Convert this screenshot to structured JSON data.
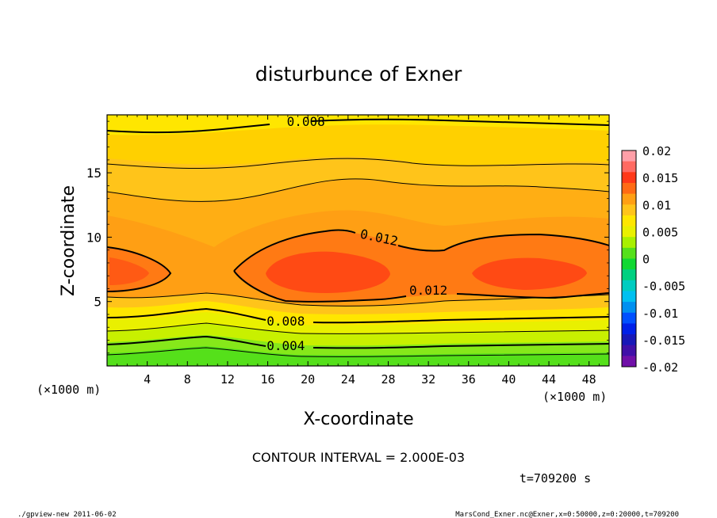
{
  "chart_data": {
    "type": "contour",
    "title": "disturbunce of Exner",
    "xlabel": "X-coordinate",
    "ylabel": "Z-coordinate",
    "x_unit_left": "(×1000 m)",
    "x_unit_right": "(×1000 m)",
    "x_ticks": [
      4,
      8,
      12,
      16,
      20,
      24,
      28,
      32,
      36,
      40,
      44,
      48
    ],
    "y_ticks": [
      5,
      10,
      15
    ],
    "xlim": [
      0,
      50
    ],
    "ylim": [
      0,
      19.5
    ],
    "contour_labels": [
      {
        "text": "0.008",
        "x": 19.8,
        "z": 19.0
      },
      {
        "text": "0.012",
        "x": 27.0,
        "z": 10.0
      },
      {
        "text": "0.012",
        "x": 32.0,
        "z": 5.9
      },
      {
        "text": "0.008",
        "x": 17.8,
        "z": 3.5
      },
      {
        "text": "0.004",
        "x": 17.8,
        "z": 1.6
      }
    ],
    "colorbar": {
      "ticks": [
        "0.02",
        "0.015",
        "0.01",
        "0.005",
        "0",
        "-0.005",
        "-0.01",
        "-0.015",
        "-0.02"
      ],
      "levels": [
        0.02,
        0.018,
        0.016,
        0.014,
        0.012,
        0.01,
        0.008,
        0.006,
        0.004,
        0.002,
        0.0,
        -0.002,
        -0.004,
        -0.006,
        -0.008,
        -0.01,
        -0.012,
        -0.014,
        -0.016,
        -0.018,
        -0.02
      ],
      "colors": [
        "#ff9fa8",
        "#ff6a62",
        "#ff3818",
        "#ff6a14",
        "#ff9f14",
        "#ffc41a",
        "#ffe600",
        "#e9f000",
        "#a8f000",
        "#55e01a",
        "#10d832",
        "#00d080",
        "#00ccc0",
        "#00c0f0",
        "#0090f0",
        "#0050ff",
        "#0020e8",
        "#1818b8",
        "#4010a8",
        "#7010a8"
      ]
    },
    "contour_interval_text": "CONTOUR INTERVAL = 2.000E-03"
  },
  "time_text": "t=709200 s",
  "footer_left": "./gpview-new   2011-06-02",
  "footer_right": "MarsCond_Exner.nc@Exner,x=0:50000,z=0:20000,t=709200"
}
